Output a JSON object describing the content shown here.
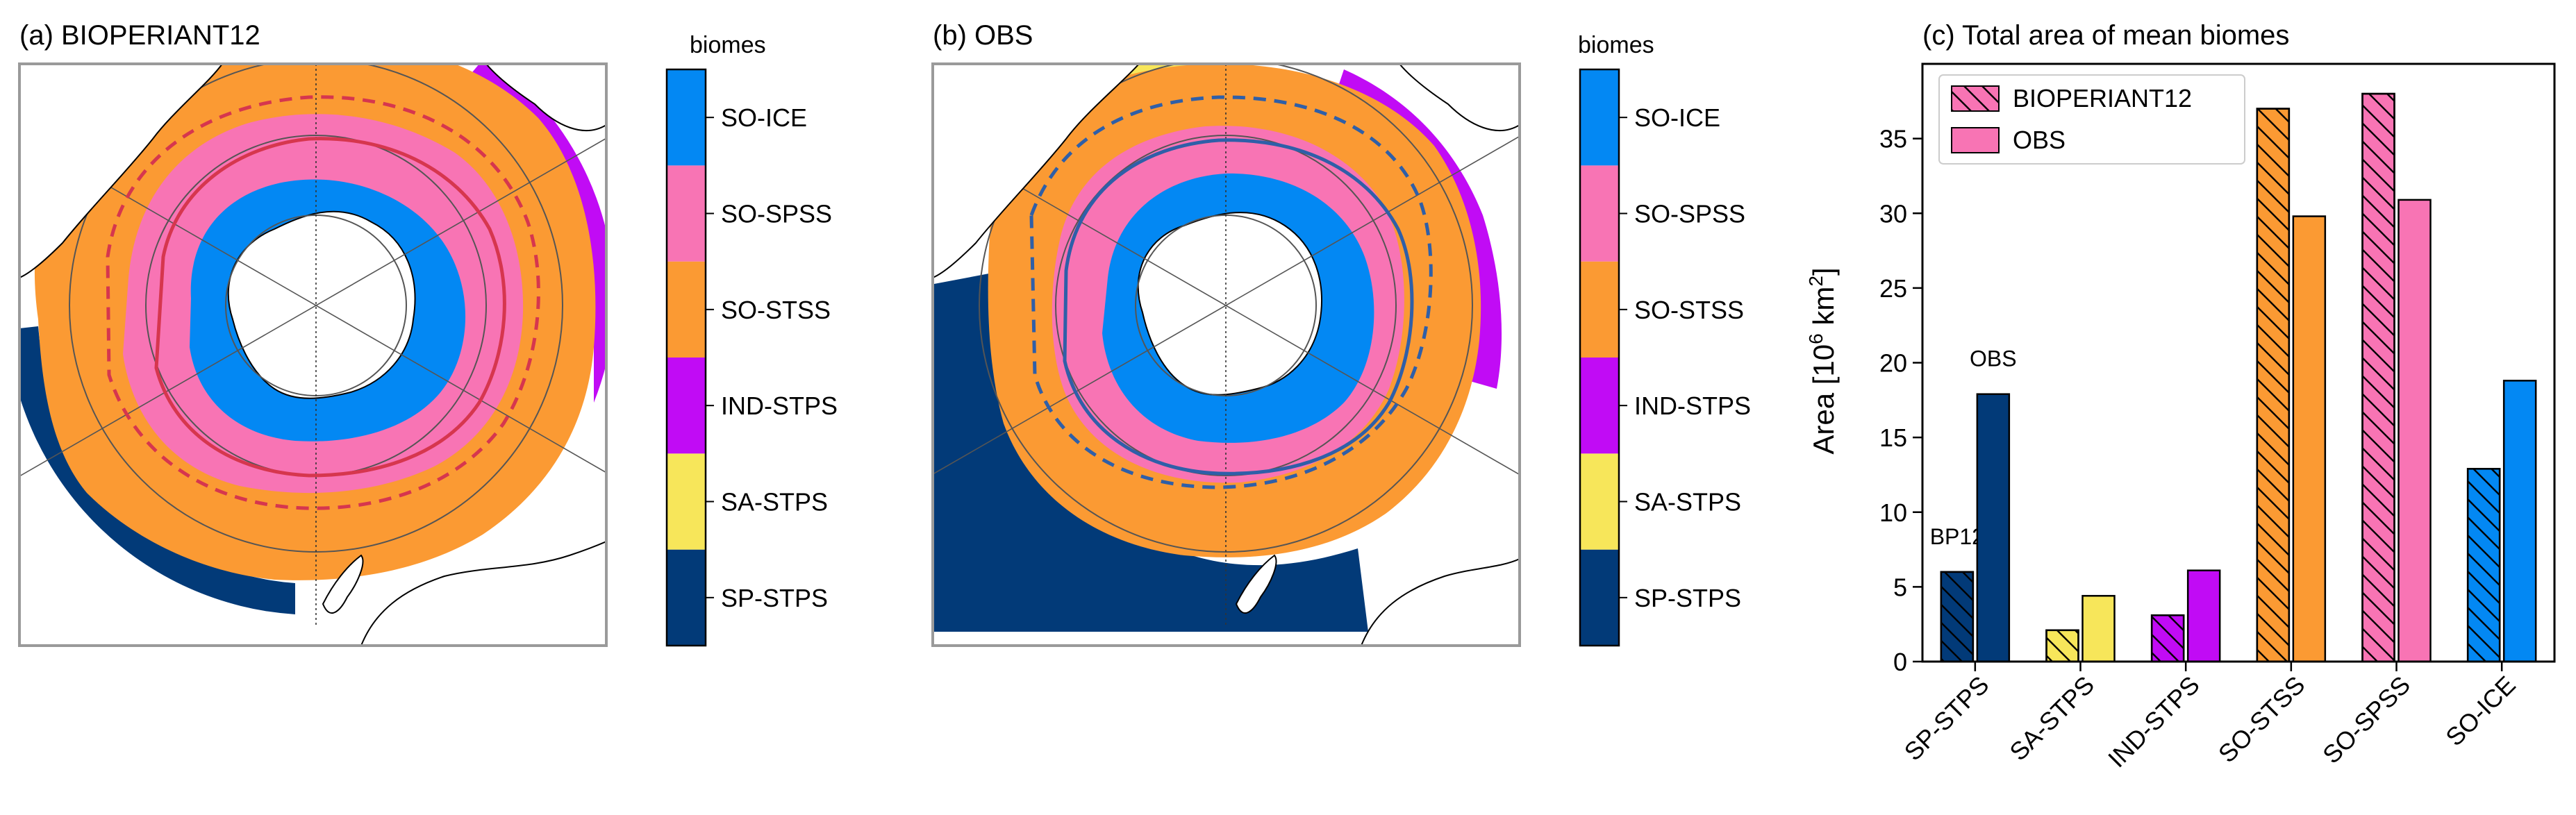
{
  "maps": [
    {
      "title": "(a) BIOPERIANT12",
      "colorbar_title": "biomes",
      "front_color": "#d6364e"
    },
    {
      "title": "(b) OBS",
      "colorbar_title": "biomes",
      "front_color": "#2f5fa8"
    }
  ],
  "biomes": [
    {
      "name": "SP-STPS",
      "color": "#023a78"
    },
    {
      "name": "SA-STPS",
      "color": "#f7e65a"
    },
    {
      "name": "IND-STPS",
      "color": "#c10bf5"
    },
    {
      "name": "SO-STSS",
      "color": "#fb9a33"
    },
    {
      "name": "SO-SPSS",
      "color": "#f874b4"
    },
    {
      "name": "SO-ICE",
      "color": "#0388f3"
    }
  ],
  "chart_data": {
    "type": "bar",
    "title": "(c) Total area of mean biomes",
    "ylabel": "Area [10",
    "ylabel_exp": "6",
    "ylabel_mid": " km",
    "ylabel_exp2": "2",
    "ylabel_end": "]",
    "categories": [
      "SP-STPS",
      "SA-STPS",
      "IND-STPS",
      "SO-STSS",
      "SO-SPSS",
      "SO-ICE"
    ],
    "series": [
      {
        "name": "BIOPERIANT12",
        "hatch": true,
        "values": [
          6.0,
          2.1,
          3.1,
          37.0,
          38.0,
          12.9
        ]
      },
      {
        "name": "OBS",
        "hatch": false,
        "values": [
          17.9,
          4.4,
          6.1,
          29.8,
          30.9,
          18.8
        ]
      }
    ],
    "ylim": [
      0,
      40
    ],
    "yticks": [
      0,
      5,
      10,
      15,
      20,
      25,
      30,
      35
    ],
    "legend": "upper-left",
    "legend_swatch_color": "#f874b4",
    "annotations": [
      {
        "text": "BP12",
        "category": "SP-STPS",
        "series": "BIOPERIANT12"
      },
      {
        "text": "OBS",
        "category": "SP-STPS",
        "series": "OBS"
      }
    ]
  }
}
